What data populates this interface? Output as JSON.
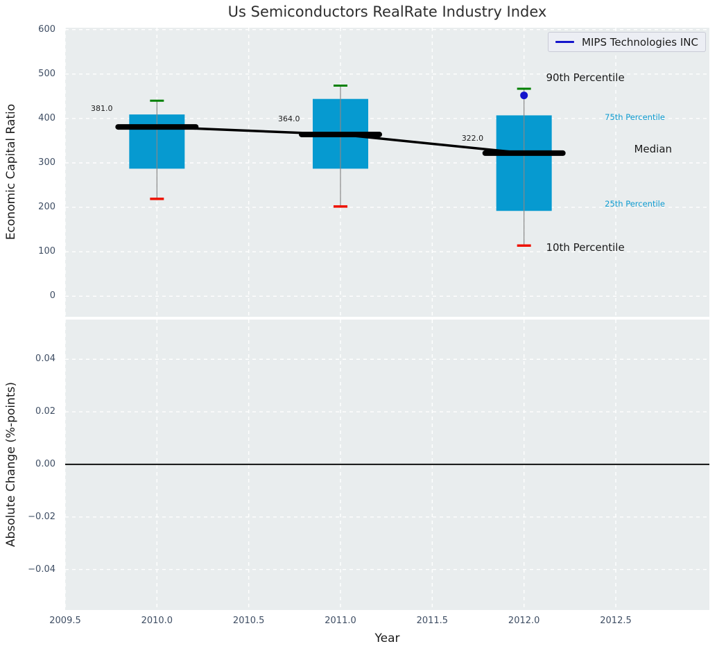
{
  "chart_data": {
    "type": "box",
    "title": "Us Semiconductors RealRate Industry Index",
    "xlabel": "Year",
    "xlim": [
      2009.5,
      2013.01
    ],
    "grid": true,
    "x_ticks": {
      "values": [
        2009.5,
        2010.0,
        2010.5,
        2011.0,
        2011.5,
        2012.0,
        2012.5
      ],
      "labels": [
        "2009.5",
        "2010.0",
        "2010.5",
        "2011.0",
        "2011.5",
        "2012.0",
        "2012.5"
      ]
    },
    "legend": {
      "position": "upper right",
      "entries": [
        {
          "label": "MIPS Technologies INC",
          "color": "#1414cc"
        }
      ]
    },
    "top_panel": {
      "ylabel": "Economic Capital Ratio",
      "ylim": [
        -46.3,
        604.2
      ],
      "y_ticks": {
        "values": [
          600,
          500,
          400,
          300,
          200,
          100,
          0
        ],
        "labels": [
          "600",
          "500",
          "400",
          "300",
          "200",
          "100",
          "0"
        ]
      },
      "boxes": [
        {
          "year": 2010,
          "p10": 219,
          "q25": 287,
          "median": 381,
          "q75": 409,
          "p90": 440,
          "median_label": "381.0"
        },
        {
          "year": 2011,
          "p10": 202,
          "q25": 287,
          "median": 364,
          "q75": 444,
          "p90": 474,
          "median_label": "364.0"
        },
        {
          "year": 2012,
          "p10": 114,
          "q25": 192,
          "median": 322,
          "q75": 407,
          "p90": 467,
          "median_label": "322.0"
        }
      ],
      "median_trend": [
        [
          2010,
          381
        ],
        [
          2011,
          364
        ],
        [
          2012,
          322
        ]
      ],
      "company_point": {
        "name": "MIPS Technologies INC",
        "year": 2012,
        "value": 452
      },
      "annotations": [
        {
          "text": "381.0",
          "x": 2009.64,
          "y": 419,
          "color": "#1a1a1a",
          "size": 11
        },
        {
          "text": "364.0",
          "x": 2010.66,
          "y": 396,
          "color": "#1a1a1a",
          "size": 11
        },
        {
          "text": "322.0",
          "x": 2011.66,
          "y": 352,
          "color": "#1a1a1a",
          "size": 11
        },
        {
          "text": "90th Percentile",
          "x": 2012.12,
          "y": 488,
          "color": "#1a1a1a",
          "size": 15
        },
        {
          "text": "75th Percentile",
          "x": 2012.44,
          "y": 399,
          "color": "#0d9bd0",
          "size": 11.5
        },
        {
          "text": "Median",
          "x": 2012.6,
          "y": 327,
          "color": "#1a1a1a",
          "size": 15
        },
        {
          "text": "25th Percentile",
          "x": 2012.44,
          "y": 205,
          "color": "#0d9bd0",
          "size": 11.5
        },
        {
          "text": "10th Percentile",
          "x": 2012.12,
          "y": 105,
          "color": "#1a1a1a",
          "size": 15
        }
      ]
    },
    "bottom_panel": {
      "ylabel": "Absolute Change (%-points)",
      "ylim": [
        -0.0554,
        0.0551
      ],
      "y_ticks": {
        "values": [
          0.04,
          0.02,
          0.0,
          -0.02,
          -0.04
        ],
        "labels": [
          "0.04",
          "0.02",
          "0.00",
          "−0.02",
          "−0.04"
        ]
      },
      "zero_line": 0.0
    },
    "colors": {
      "box_fill": "#069ad0",
      "whisker": "#888888",
      "cap_top": "#008000",
      "cap_bottom": "#ee1100",
      "median": "#000000",
      "trend": "#000000",
      "company_point": "#1414cc",
      "axes_background": "#e9edee",
      "grid": "#ffffff",
      "zero_line": "#111111",
      "tick_label": "#3e4d63",
      "text": "#1a1a1a"
    }
  }
}
